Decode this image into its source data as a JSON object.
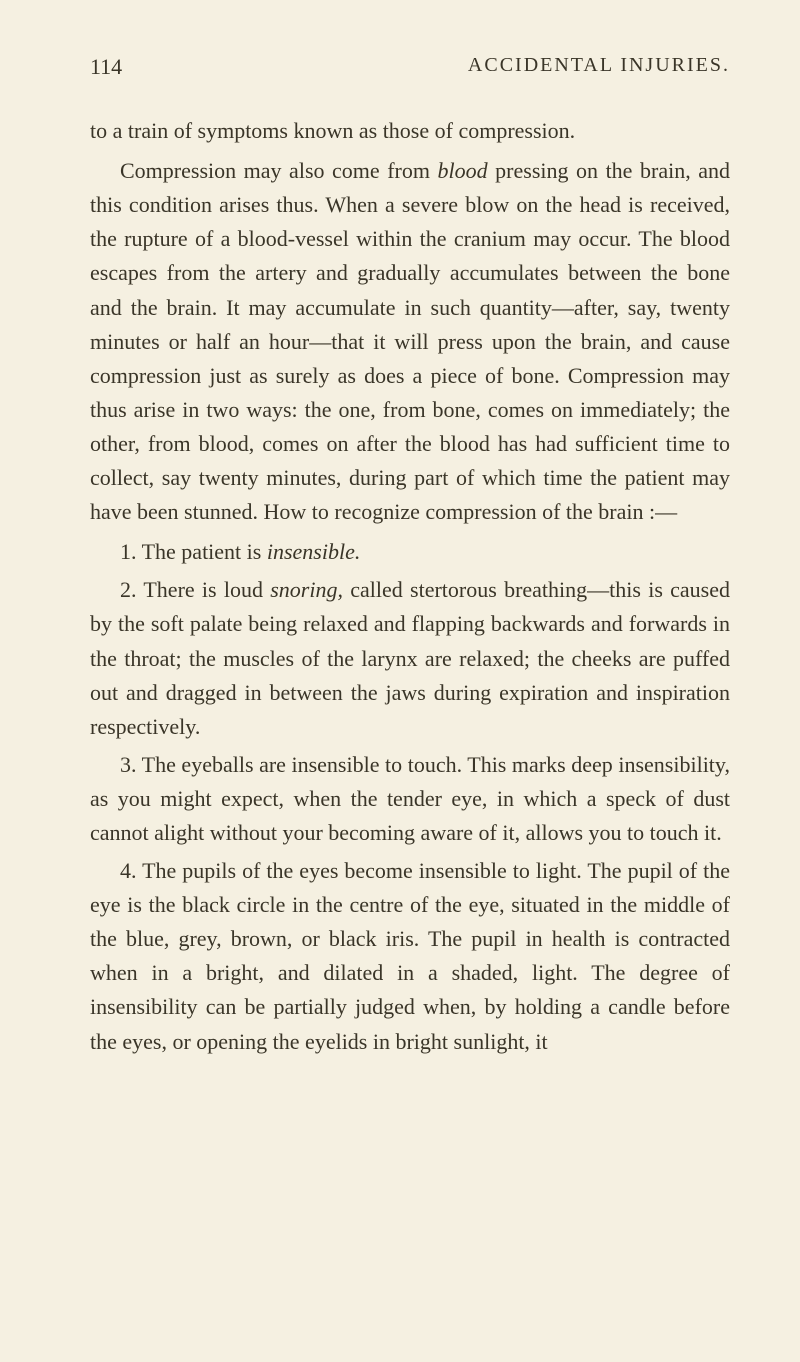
{
  "colors": {
    "background": "#f5f0e1",
    "text": "#3a3528"
  },
  "typography": {
    "font_family": "Georgia, Times New Roman, serif",
    "body_fontsize": 22,
    "title_fontsize": 20,
    "line_height": 1.55
  },
  "header": {
    "page_number": "114",
    "title": "ACCIDENTAL INJURIES."
  },
  "body": {
    "para1": "to a train of symptoms known as those of compression.",
    "para2_part1": "Compression may also come from ",
    "para2_italic1": "blood",
    "para2_part2": " pressing on the brain, and this condition arises thus. When a severe blow on the head is received, the rupture of a blood-vessel within the cranium may occur. The blood escapes from the artery and gradually accumulates between the bone and the brain. It may accumulate in such quantity—after, say, twenty minutes or half an hour—that it will press upon the brain, and cause compression just as surely as does a piece of bone. Compression may thus arise in two ways: the one, from bone, comes on immediately; the other, from blood, comes on after the blood has had sufficient time to collect, say twenty minutes, during part of which time the patient may have been stunned. How to recognize compression of the brain :—",
    "item1_part1": "1. The patient is ",
    "item1_italic": "insensible.",
    "item2_part1": "2. There is loud ",
    "item2_italic": "snoring,",
    "item2_part2": " called stertorous breathing—this is caused by the soft palate being relaxed and flapping backwards and forwards in the throat; the muscles of the larynx are relaxed; the cheeks are puffed out and dragged in between the jaws during expiration and inspiration respectively.",
    "item3": "3. The eyeballs are insensible to touch. This marks deep insensibility, as you might expect, when the tender eye, in which a speck of dust cannot alight without your becoming aware of it, allows you to touch it.",
    "item4": "4. The pupils of the eyes become insensible to light. The pupil of the eye is the black circle in the centre of the eye, situated in the middle of the blue, grey, brown, or black iris. The pupil in health is contracted when in a bright, and dilated in a shaded, light. The degree of insensibility can be partially judged when, by holding a candle before the eyes, or opening the eyelids in bright sunlight, it"
  }
}
